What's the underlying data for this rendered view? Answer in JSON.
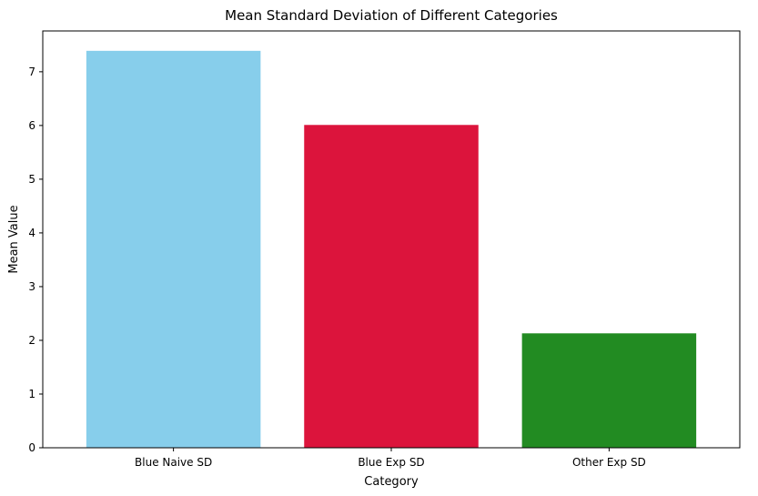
{
  "chart_data": {
    "type": "bar",
    "title": "Mean Standard Deviation of Different Categories",
    "xlabel": "Category",
    "ylabel": "Mean Value",
    "categories": [
      "Blue Naive SD",
      "Blue Exp SD",
      "Other Exp SD"
    ],
    "values": [
      7.39,
      6.01,
      2.13
    ],
    "colors": [
      "#87ceeb",
      "#dc143c",
      "#228b22"
    ],
    "ylim": [
      0,
      7.76
    ],
    "yticks": [
      0,
      1,
      2,
      3,
      4,
      5,
      6,
      7
    ],
    "grid": false,
    "legend": "none"
  }
}
